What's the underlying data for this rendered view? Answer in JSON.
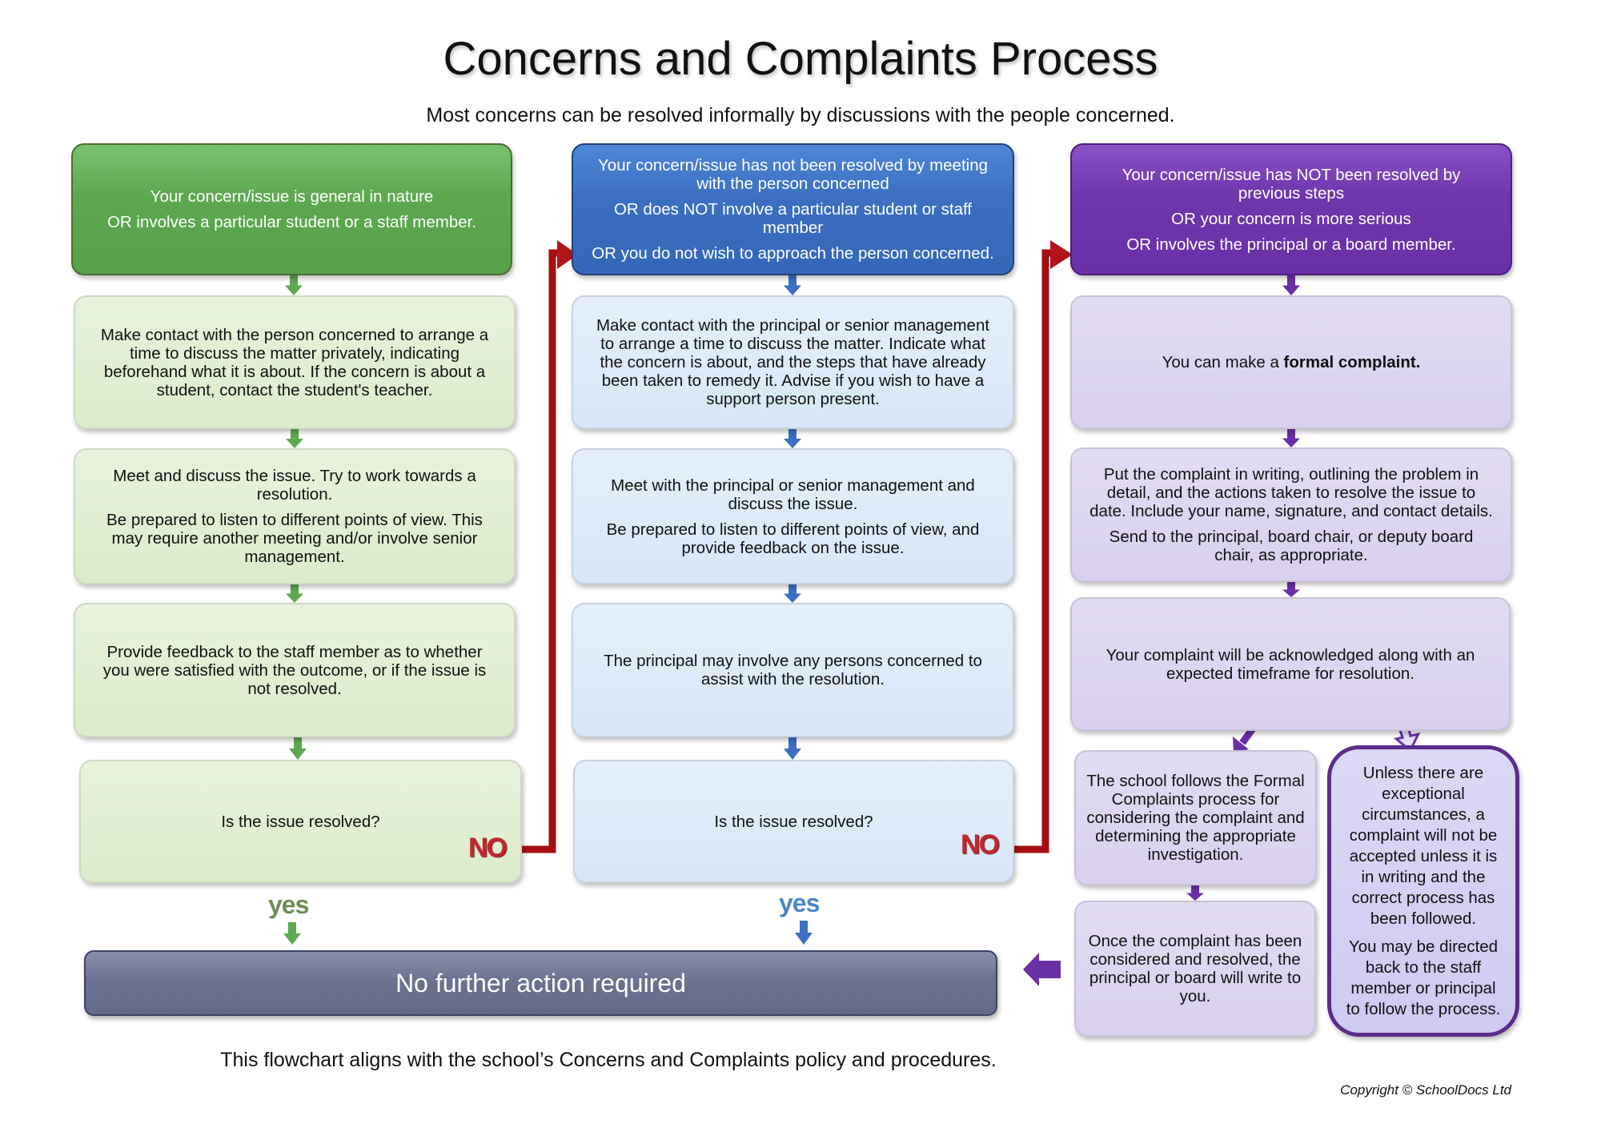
{
  "title": "Concerns and Complaints Process",
  "subtitle": "Most concerns can be resolved informally by discussions with the people concerned.",
  "colors": {
    "green": "#5ea851",
    "blue": "#3c6fc2",
    "purple": "#7036ad",
    "red_connector": "#a50f12",
    "final_bar": "#6c7290"
  },
  "columns": [
    {
      "header": [
        "Your concern/issue is general in nature",
        "OR involves a particular student or a staff member."
      ],
      "steps": [
        [
          "Make contact with the person concerned to arrange a time to discuss the matter privately, indicating beforehand what it is about. If the concern is about a student, contact the student's teacher."
        ],
        [
          "Meet and discuss the issue. Try to work towards a resolution.",
          "Be prepared to listen to different points of view. This may require another meeting and/or involve senior management."
        ],
        [
          "Provide feedback to the staff member as to whether you were satisfied with the outcome, or if the issue is not resolved."
        ]
      ],
      "question": "Is the issue resolved?",
      "no_label": "NO",
      "yes_label": "yes"
    },
    {
      "header": [
        "Your concern/issue has not been resolved by meeting with the person concerned",
        "OR does NOT involve a particular student or staff member",
        "OR you do not wish to approach the person concerned."
      ],
      "steps": [
        [
          "Make contact with the principal or senior management to arrange a time to discuss the matter. Indicate what the concern is about, and the steps that have already been taken to remedy it. Advise if you wish to have a support person present."
        ],
        [
          "Meet with the principal or senior management and discuss the issue.",
          "Be prepared to listen to different points of view, and provide feedback on the issue."
        ],
        [
          "The principal may involve any persons concerned to assist with the resolution."
        ]
      ],
      "question": "Is the issue resolved?",
      "no_label": "NO",
      "yes_label": "yes"
    },
    {
      "header": [
        "Your concern/issue has NOT been resolved by previous steps",
        "OR your concern is more serious",
        "OR involves the principal or a board member."
      ],
      "formal": {
        "prefix": "You can make a ",
        "bold": "formal complaint."
      },
      "steps": [
        [
          "Put the complaint in writing, outlining the problem in detail, and the actions taken to resolve the issue to date. Include your name, signature, and contact details.",
          "Send to the principal, board chair, or deputy board chair, as appropriate."
        ],
        [
          "Your complaint will be acknowledged along with an expected timeframe for resolution."
        ]
      ],
      "process": [
        "The school follows the Formal Complaints process for considering the complaint and determining the appropriate investigation."
      ],
      "resolved": [
        "Once the complaint has been considered and resolved, the principal or board will write to you."
      ],
      "note": [
        "Unless there are exceptional circumstances, a complaint will not be accepted unless it is in writing and the correct process has been followed.",
        "You may be directed back to the staff member or principal to follow the process."
      ]
    }
  ],
  "final": "No further action required",
  "footer": "This flowchart aligns with the school’s Concerns and Complaints policy and procedures.",
  "copyright": "Copyright © SchoolDocs Ltd"
}
